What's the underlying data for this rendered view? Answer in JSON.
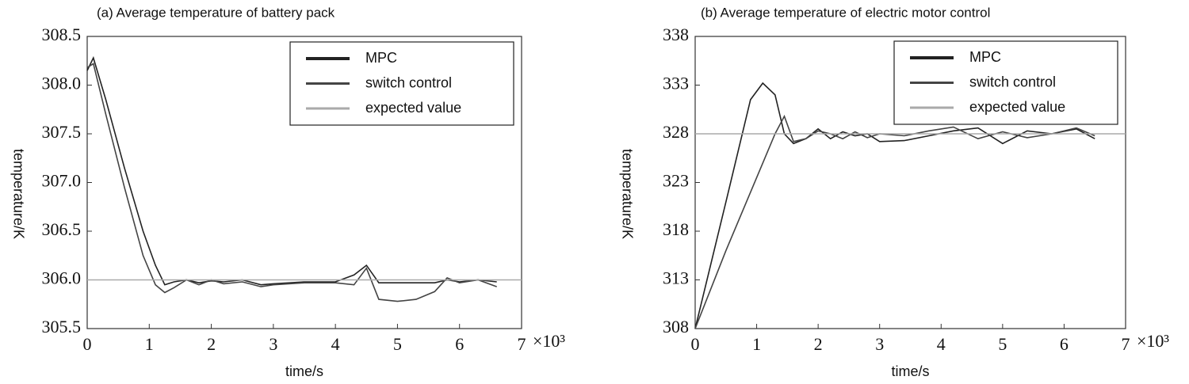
{
  "chart_data": [
    {
      "type": "line",
      "title": "(a) Average temperature of battery pack",
      "x_label": "time/s",
      "y_label": "temperature/K",
      "x_multiplier": "×10³",
      "xlim": [
        0,
        7
      ],
      "xticks": [
        0,
        1,
        2,
        3,
        4,
        5,
        6,
        7
      ],
      "ylim": [
        305.5,
        308.5
      ],
      "yticks": [
        305.5,
        {
          "value": 306,
          "label": "306.0"
        },
        306.5,
        {
          "value": 307,
          "label": "307.0"
        },
        307.5,
        {
          "value": 308,
          "label": "308.0"
        },
        308.5
      ],
      "grid": false,
      "legend": "upper right",
      "series": [
        {
          "name": "MPC",
          "color": "#222222",
          "x": [
            0,
            0.1,
            0.3,
            0.6,
            0.9,
            1.1,
            1.25,
            1.4,
            1.6,
            1.8,
            2.0,
            2.2,
            2.5,
            2.8,
            3.0,
            3.5,
            4.0,
            4.3,
            4.5,
            4.7,
            5.0,
            5.3,
            5.6,
            5.8,
            6.0,
            6.3,
            6.6
          ],
          "values": [
            308.15,
            308.28,
            307.85,
            307.15,
            306.5,
            306.15,
            305.95,
            305.98,
            306.0,
            305.97,
            305.99,
            305.98,
            306.0,
            305.95,
            305.96,
            305.98,
            305.98,
            306.05,
            306.15,
            305.97,
            305.97,
            305.97,
            305.97,
            306.0,
            305.98,
            306.0,
            305.98
          ]
        },
        {
          "name": "switch control",
          "color": "#444444",
          "x": [
            0,
            0.1,
            0.3,
            0.6,
            0.9,
            1.1,
            1.25,
            1.4,
            1.6,
            1.8,
            2.0,
            2.2,
            2.5,
            2.8,
            3.0,
            3.5,
            4.0,
            4.3,
            4.5,
            4.7,
            5.0,
            5.3,
            5.6,
            5.8,
            6.0,
            6.3,
            6.6
          ],
          "values": [
            308.18,
            308.22,
            307.7,
            306.95,
            306.25,
            305.95,
            305.87,
            305.92,
            306.0,
            305.95,
            306.0,
            305.96,
            305.98,
            305.93,
            305.95,
            305.97,
            305.97,
            305.95,
            306.12,
            305.8,
            305.78,
            305.8,
            305.88,
            306.02,
            305.97,
            306.0,
            305.93
          ]
        },
        {
          "name": "expected value",
          "color": "#aaaaaa",
          "x": [
            0,
            7
          ],
          "values": [
            306,
            306
          ]
        }
      ]
    },
    {
      "type": "line",
      "title": "(b) Average temperature of electric motor control",
      "x_label": "time/s",
      "y_label": "temperature/K",
      "x_multiplier": "×10³",
      "xlim": [
        0,
        7
      ],
      "xticks": [
        0,
        1,
        2,
        3,
        4,
        5,
        6,
        7
      ],
      "ylim": [
        308,
        338
      ],
      "yticks": [
        308,
        313,
        318,
        323,
        328,
        333,
        338
      ],
      "grid": false,
      "legend": "upper right",
      "series": [
        {
          "name": "MPC",
          "color": "#222222",
          "x": [
            0,
            0.5,
            0.9,
            1.1,
            1.3,
            1.45,
            1.6,
            1.8,
            2.0,
            2.2,
            2.4,
            2.6,
            2.8,
            3.0,
            3.4,
            3.8,
            4.2,
            4.6,
            5.0,
            5.4,
            5.8,
            6.2,
            6.5
          ],
          "values": [
            308,
            321,
            331.5,
            333.2,
            332,
            328,
            327,
            327.5,
            328.5,
            327.5,
            328.2,
            327.8,
            328,
            327.2,
            327.3,
            327.8,
            328.3,
            328.6,
            327,
            328.3,
            328,
            328.5,
            327.5
          ]
        },
        {
          "name": "switch control",
          "color": "#444444",
          "x": [
            0,
            0.5,
            0.9,
            1.1,
            1.3,
            1.45,
            1.6,
            1.8,
            2.0,
            2.2,
            2.4,
            2.6,
            2.8,
            3.0,
            3.4,
            3.8,
            4.2,
            4.6,
            5.0,
            5.4,
            5.8,
            6.2,
            6.5
          ],
          "values": [
            308,
            316,
            322,
            325,
            328,
            329.8,
            327.2,
            327.5,
            328.3,
            328,
            327.5,
            328.2,
            327.6,
            328,
            327.8,
            328.3,
            328.7,
            327.5,
            328.2,
            327.6,
            328,
            328.6,
            327.8
          ]
        },
        {
          "name": "expected value",
          "color": "#aaaaaa",
          "x": [
            0,
            7
          ],
          "values": [
            328,
            328
          ]
        }
      ]
    }
  ]
}
